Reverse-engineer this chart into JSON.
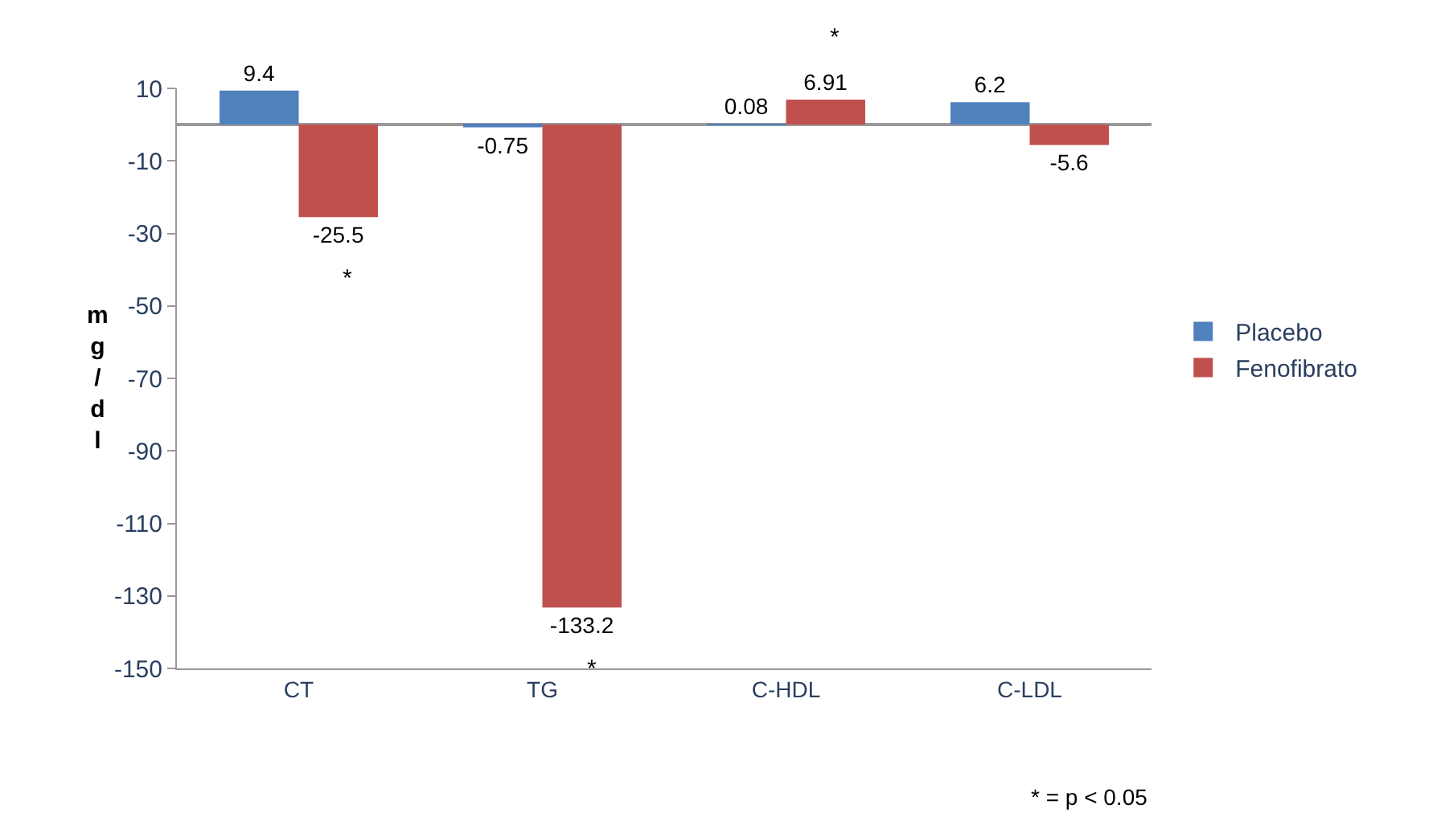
{
  "chart_data": {
    "type": "bar",
    "ylabel": "mg/dl",
    "categories": [
      "CT",
      "TG",
      "C-HDL",
      "C-LDL"
    ],
    "series": [
      {
        "name": "Placebo",
        "color": "#4f81bd",
        "values": [
          9.4,
          -0.75,
          0.08,
          6.2
        ]
      },
      {
        "name": "Fenofibrato",
        "color": "#c0504d",
        "values": [
          -25.5,
          -133.2,
          6.91,
          -5.6
        ]
      }
    ],
    "ylim": [
      -150,
      10
    ],
    "yticks": [
      10,
      -10,
      -30,
      -50,
      -70,
      -90,
      -110,
      -130,
      -150
    ],
    "data_labels": true,
    "legend": "right",
    "annotations": [
      {
        "text": "*",
        "x": "CT",
        "y": -25.5
      },
      {
        "text": "*",
        "x": "TG",
        "y": -133.2
      },
      {
        "text": "*",
        "x": "C-HDL",
        "y": 6.91
      },
      "* = p < 0.05"
    ]
  }
}
